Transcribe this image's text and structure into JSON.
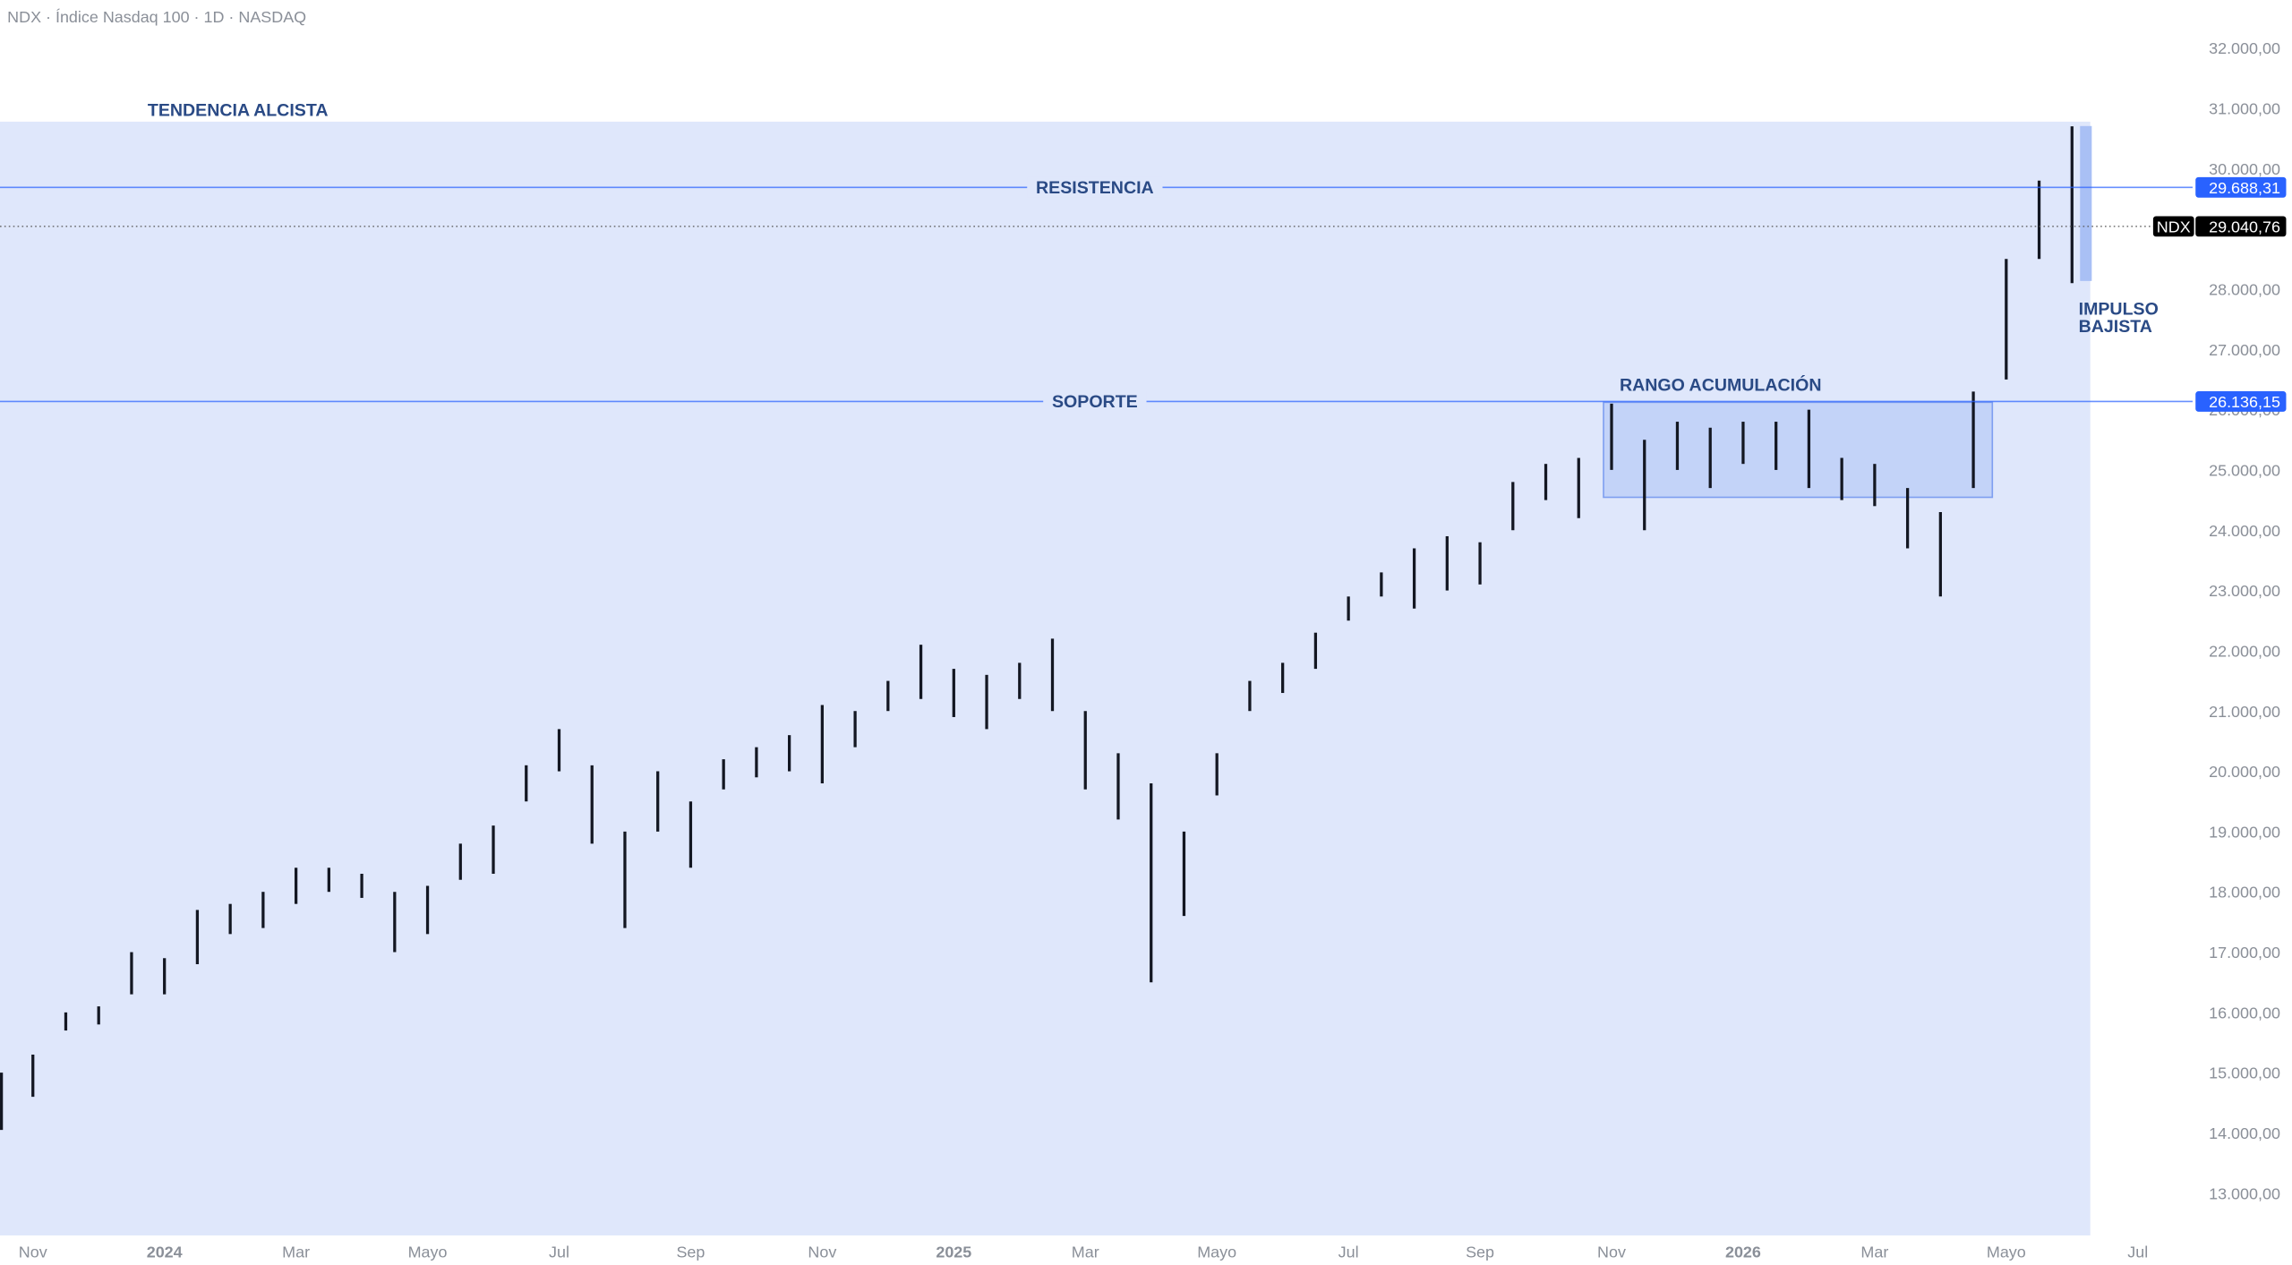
{
  "chart_data": {
    "type": "range-bar",
    "title": "NDX · Índice Nasdaq 100 · 1D · NASDAQ",
    "series_name": "NDX",
    "color": "#131722",
    "categories": [
      null,
      "Nov",
      null,
      null,
      null,
      "2024",
      null,
      null,
      null,
      "Mar",
      null,
      null,
      null,
      "Mayo",
      null,
      null,
      null,
      "Jul",
      null,
      null,
      null,
      "Sep",
      null,
      null,
      null,
      "Nov",
      null,
      null,
      null,
      "2025",
      null,
      null,
      null,
      "Mar",
      null,
      null,
      null,
      "Mayo",
      null,
      null,
      null,
      "Jul",
      null,
      null,
      null,
      "Sep",
      null,
      null,
      null,
      "Nov",
      null,
      null,
      null,
      "2026",
      null,
      null,
      null,
      "Mar",
      null,
      null,
      null,
      "Mayo",
      null,
      null,
      null,
      "Jul"
    ],
    "high": [
      15000,
      15300,
      16000,
      16100,
      17000,
      16900,
      17700,
      17800,
      18000,
      18400,
      18400,
      18300,
      18000,
      18100,
      18800,
      19100,
      20100,
      20700,
      20100,
      19000,
      20000,
      19500,
      20200,
      20400,
      20600,
      21100,
      21000,
      21500,
      22100,
      21700,
      21600,
      21800,
      22200,
      21000,
      20300,
      19800,
      19000,
      20300,
      21500,
      21800,
      22300,
      22900,
      23300,
      23700,
      23900,
      23800,
      24800,
      25100,
      25200,
      26100,
      25500,
      25800,
      25700,
      25800,
      25800,
      26000,
      25200,
      25100,
      24700,
      24300,
      26300,
      28500,
      29800,
      30700,
      null,
      null
    ],
    "low": [
      14050,
      14600,
      15700,
      15800,
      16300,
      16300,
      16800,
      17300,
      17400,
      17800,
      18000,
      17900,
      17000,
      17300,
      18200,
      18300,
      19500,
      20000,
      18800,
      17400,
      19000,
      18400,
      19700,
      19900,
      20000,
      19800,
      20400,
      21000,
      21200,
      20900,
      20700,
      21200,
      21000,
      19700,
      19200,
      16500,
      17600,
      19600,
      21000,
      21300,
      21700,
      22500,
      22900,
      22700,
      23000,
      23100,
      24000,
      24500,
      24200,
      25000,
      24000,
      25000,
      24700,
      25100,
      25000,
      24700,
      24500,
      24400,
      23700,
      22900,
      24700,
      26500,
      28500,
      28100,
      null,
      null
    ],
    "ylim": [
      12300,
      32500
    ],
    "yticks": [
      {
        "value": 13000,
        "label": "13.000,00"
      },
      {
        "value": 14000,
        "label": "14.000,00"
      },
      {
        "value": 15000,
        "label": "15.000,00"
      },
      {
        "value": 16000,
        "label": "16.000,00"
      },
      {
        "value": 17000,
        "label": "17.000,00"
      },
      {
        "value": 18000,
        "label": "18.000,00"
      },
      {
        "value": 19000,
        "label": "19.000,00"
      },
      {
        "value": 20000,
        "label": "20.000,00"
      },
      {
        "value": 21000,
        "label": "21.000,00"
      },
      {
        "value": 22000,
        "label": "22.000,00"
      },
      {
        "value": 23000,
        "label": "23.000,00"
      },
      {
        "value": 24000,
        "label": "24.000,00"
      },
      {
        "value": 25000,
        "label": "25.000,00"
      },
      {
        "value": 26000,
        "label": "26.000,00"
      },
      {
        "value": 27000,
        "label": "27.000,00"
      },
      {
        "value": 28000,
        "label": "28.000,00"
      },
      {
        "value": 29000,
        "label": "29.000,00"
      },
      {
        "value": 30000,
        "label": "30.000,00"
      },
      {
        "value": 31000,
        "label": "31.000,00"
      },
      {
        "value": 32000,
        "label": "32.000,00"
      }
    ],
    "levels": [
      {
        "name": "RESISTENCIA",
        "value": 29688.31,
        "label": "29.688,31",
        "color": "#2962ff"
      },
      {
        "name": "SOPORTE",
        "value": 26136.15,
        "label": "26.136,15",
        "color": "#2962ff"
      }
    ],
    "last": {
      "value": 29040.76,
      "label": "29.040,76"
    },
    "annotations": {
      "trend": "TENDENCIA ALCISTA",
      "range": "RANGO ACUMULACIÓN",
      "impulse_1": "IMPULSO",
      "impulse_2": "BAJISTA"
    }
  }
}
